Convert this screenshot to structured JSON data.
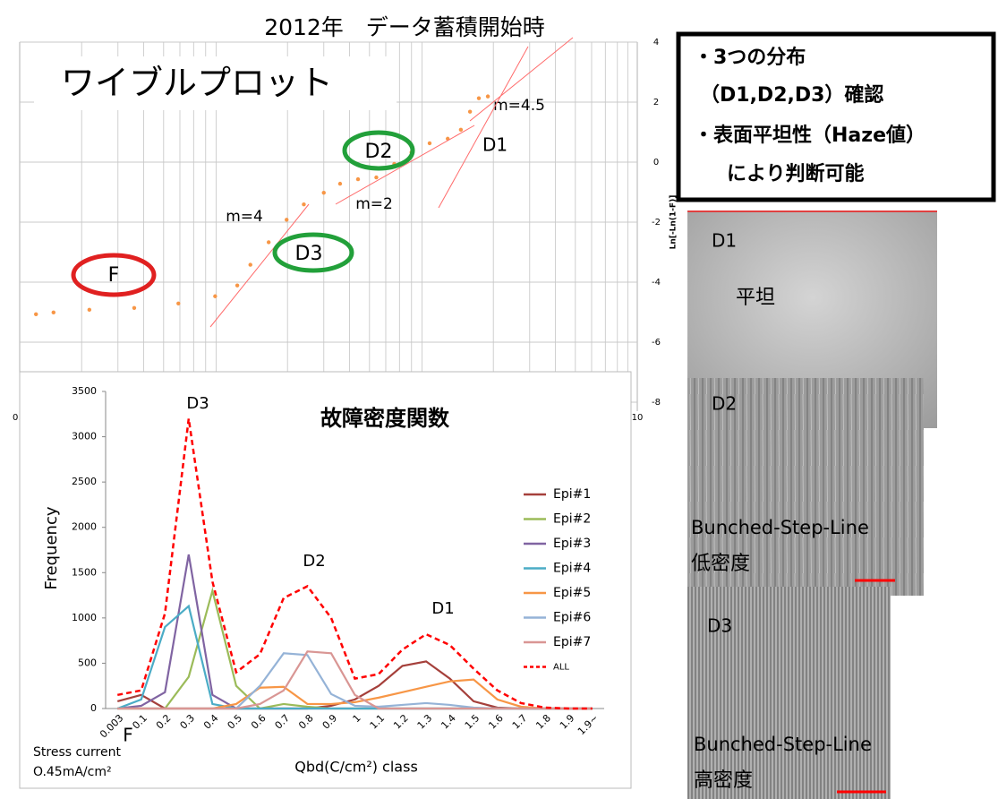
{
  "title": "2012年　データ蓄積開始時",
  "chart_data": [
    {
      "type": "scatter",
      "xscale": "log",
      "xlim": [
        0.01,
        10
      ],
      "ylim": [
        -8,
        4
      ],
      "xticks": [
        {
          "value": 0.01,
          "label": "0.0"
        },
        10
      ],
      "yticks": [
        4,
        2,
        0,
        -2,
        -4,
        -6,
        -8
      ],
      "y_label": "Ln[-Ln(1-F)]",
      "grid": true,
      "color": "#f79646",
      "x": [
        0.012,
        0.0146,
        0.0218,
        0.036,
        0.059,
        0.089,
        0.114,
        0.132,
        0.162,
        0.198,
        0.24,
        0.3,
        0.36,
        0.44,
        0.54,
        0.66,
        0.8,
        0.98,
        1.2,
        1.39,
        1.54,
        1.7,
        1.88
      ],
      "values": [
        -5.07,
        -5.01,
        -4.92,
        -4.86,
        -4.71,
        -4.47,
        -4.11,
        -3.42,
        -2.67,
        -1.92,
        -1.41,
        -1.02,
        -0.72,
        -0.57,
        -0.51,
        -0.06,
        0.33,
        0.63,
        0.78,
        1.08,
        1.68,
        2.13,
        2.19
      ],
      "annotations": [
        "ワイブルプロット",
        "F",
        "D3",
        "D2",
        "D1",
        "m=4",
        "m=2",
        "m=4.5"
      ]
    },
    {
      "type": "line",
      "title": "故障密度関数",
      "x_label": "Qbd(C/cm²) class",
      "y_label": "Frequency",
      "categories": [
        "0.003",
        "0.1",
        "0.2",
        "0.3",
        "0.4",
        "0.5",
        "0.6",
        "0.7",
        "0.8",
        "0.9",
        "1",
        "1.1",
        "1.2",
        "1.3",
        "1.4",
        "1.5",
        "1.6",
        "1.7",
        "1.8",
        "1.9",
        "1.9~"
      ],
      "ylim": [
        0,
        3500
      ],
      "yticks": [
        0,
        500,
        1000,
        1500,
        2000,
        2500,
        3000,
        3500
      ],
      "series": [
        {
          "name": "Epi#1",
          "color": "#a5403b",
          "dashed": false,
          "values": [
            80,
            150,
            0,
            0,
            0,
            0,
            0,
            0,
            0,
            30,
            100,
            250,
            470,
            520,
            330,
            80,
            10,
            0,
            0,
            0,
            0
          ]
        },
        {
          "name": "Epi#2",
          "color": "#9bbb59",
          "dashed": false,
          "values": [
            0,
            0,
            0,
            350,
            1300,
            250,
            0,
            50,
            20,
            0,
            0,
            0,
            0,
            0,
            0,
            0,
            0,
            0,
            0,
            0,
            0
          ]
        },
        {
          "name": "Epi#3",
          "color": "#8064a2",
          "dashed": false,
          "values": [
            0,
            30,
            180,
            1700,
            150,
            0,
            0,
            0,
            0,
            0,
            0,
            0,
            0,
            0,
            0,
            0,
            0,
            0,
            0,
            0,
            0
          ]
        },
        {
          "name": "Epi#4",
          "color": "#4bacc6",
          "dashed": false,
          "values": [
            0,
            100,
            900,
            1130,
            50,
            0,
            0,
            0,
            0,
            0,
            0,
            0,
            0,
            0,
            0,
            0,
            0,
            0,
            0,
            0,
            0
          ]
        },
        {
          "name": "Epi#5",
          "color": "#f79646",
          "dashed": false,
          "values": [
            0,
            0,
            0,
            0,
            0,
            50,
            230,
            240,
            50,
            50,
            70,
            120,
            180,
            240,
            300,
            320,
            100,
            20,
            0,
            0,
            0
          ]
        },
        {
          "name": "Epi#6",
          "color": "#95b3d7",
          "dashed": false,
          "values": [
            0,
            0,
            0,
            0,
            0,
            0,
            250,
            610,
            590,
            160,
            30,
            20,
            40,
            60,
            40,
            10,
            0,
            0,
            0,
            0,
            0
          ]
        },
        {
          "name": "Epi#7",
          "color": "#d99694",
          "dashed": false,
          "values": [
            0,
            0,
            0,
            0,
            0,
            0,
            50,
            200,
            630,
            610,
            150,
            0,
            0,
            0,
            0,
            0,
            0,
            0,
            0,
            0,
            0
          ]
        },
        {
          "name": "ALL",
          "color": "#ff0000",
          "dashed": true,
          "values": [
            150,
            200,
            1050,
            3200,
            1400,
            400,
            600,
            1220,
            1350,
            1000,
            330,
            380,
            650,
            820,
            700,
            440,
            200,
            60,
            10,
            0,
            0
          ]
        }
      ],
      "annotations": [
        "D3",
        "D2",
        "D1",
        "F",
        "Stress current",
        "O.45mA/cm²"
      ]
    }
  ],
  "note_box": {
    "lines": [
      "・3つの分布",
      "（D1,D2,D3）確認",
      "・表面平坦性（Haze値）",
      "により判断可能"
    ]
  },
  "images": [
    {
      "labels": [
        "D1",
        "平坦"
      ]
    },
    {
      "labels": [
        "D2",
        "Bunched-Step-Line",
        "低密度"
      ]
    },
    {
      "labels": [
        "D3",
        "Bunched-Step-Line",
        "高密度"
      ]
    }
  ]
}
